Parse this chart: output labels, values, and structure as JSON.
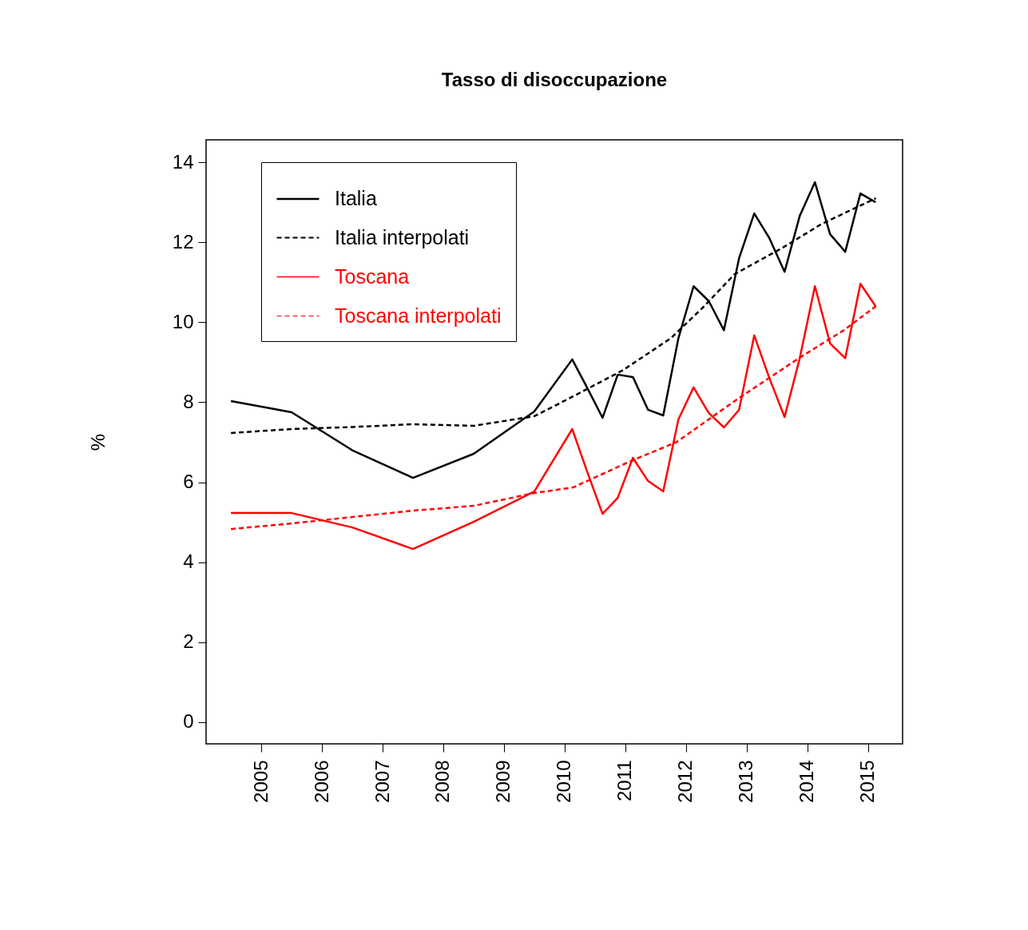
{
  "chart_data": {
    "type": "line",
    "title": "Tasso di disoccupazione",
    "ylabel": "%",
    "xlim": [
      2004.09,
      2015.57
    ],
    "ylim": [
      -0.54,
      14.56
    ],
    "xticks": [
      2005,
      2006,
      2007,
      2008,
      2009,
      2010,
      2011,
      2012,
      2013,
      2014,
      2015
    ],
    "yticks": [
      0,
      2,
      4,
      6,
      8,
      10,
      12,
      14
    ],
    "grid": false,
    "legend": "top left",
    "series": [
      {
        "name": "Italia",
        "color": "#000000",
        "line_style": "solid",
        "x": [
          2004.5,
          2005.5,
          2006.5,
          2007.5,
          2008.5,
          2009.5,
          2010.125,
          2010.375,
          2010.625,
          2010.875,
          2011.125,
          2011.375,
          2011.625,
          2011.875,
          2012.125,
          2012.375,
          2012.625,
          2012.875,
          2013.125,
          2013.375,
          2013.625,
          2013.875,
          2014.125,
          2014.375,
          2014.625,
          2014.875,
          2015.125
        ],
        "values": [
          8.03,
          7.75,
          6.8,
          6.11,
          6.71,
          7.77,
          9.07,
          8.35,
          7.61,
          8.69,
          8.63,
          7.81,
          7.67,
          9.6,
          10.9,
          10.53,
          9.8,
          11.6,
          12.72,
          12.1,
          11.26,
          12.66,
          13.5,
          12.2,
          11.76,
          13.22,
          13.0
        ]
      },
      {
        "name": "Italia interpolati",
        "color": "#000000",
        "line_style": "dashed",
        "x": [
          2004.5,
          2005.5,
          2006.5,
          2007.5,
          2008.5,
          2009.5,
          2010.08,
          2010.96,
          2011.75,
          2012.28,
          2012.8,
          2013.59,
          2014.24,
          2015.13
        ],
        "values": [
          7.23,
          7.33,
          7.38,
          7.45,
          7.41,
          7.65,
          8.1,
          8.8,
          9.6,
          10.37,
          11.2,
          11.86,
          12.46,
          13.1
        ]
      },
      {
        "name": "Toscana",
        "color": "#ff0000",
        "line_style": "solid",
        "x": [
          2004.5,
          2005.5,
          2006.5,
          2007.5,
          2008.5,
          2009.5,
          2010.125,
          2010.375,
          2010.625,
          2010.875,
          2011.125,
          2011.375,
          2011.625,
          2011.875,
          2012.125,
          2012.375,
          2012.625,
          2012.875,
          2013.125,
          2013.375,
          2013.625,
          2013.875,
          2014.125,
          2014.375,
          2014.625,
          2014.875,
          2015.125
        ],
        "values": [
          5.23,
          5.23,
          4.87,
          4.33,
          5.01,
          5.77,
          7.33,
          6.25,
          5.21,
          5.61,
          6.61,
          6.03,
          5.77,
          7.57,
          8.37,
          7.73,
          7.37,
          7.81,
          9.67,
          8.6,
          7.63,
          9.1,
          10.9,
          9.47,
          9.1,
          10.96,
          10.4
        ]
      },
      {
        "name": "Toscana interpolati",
        "color": "#ff0000",
        "line_style": "dashed",
        "x": [
          2004.5,
          2005.5,
          2006.5,
          2007.5,
          2008.5,
          2009.5,
          2010.14,
          2011.09,
          2011.84,
          2012.84,
          2013.89,
          2014.6,
          2015.13
        ],
        "values": [
          4.83,
          4.97,
          5.13,
          5.29,
          5.41,
          5.73,
          5.87,
          6.53,
          7.0,
          8.07,
          9.13,
          9.8,
          10.4
        ]
      }
    ]
  }
}
